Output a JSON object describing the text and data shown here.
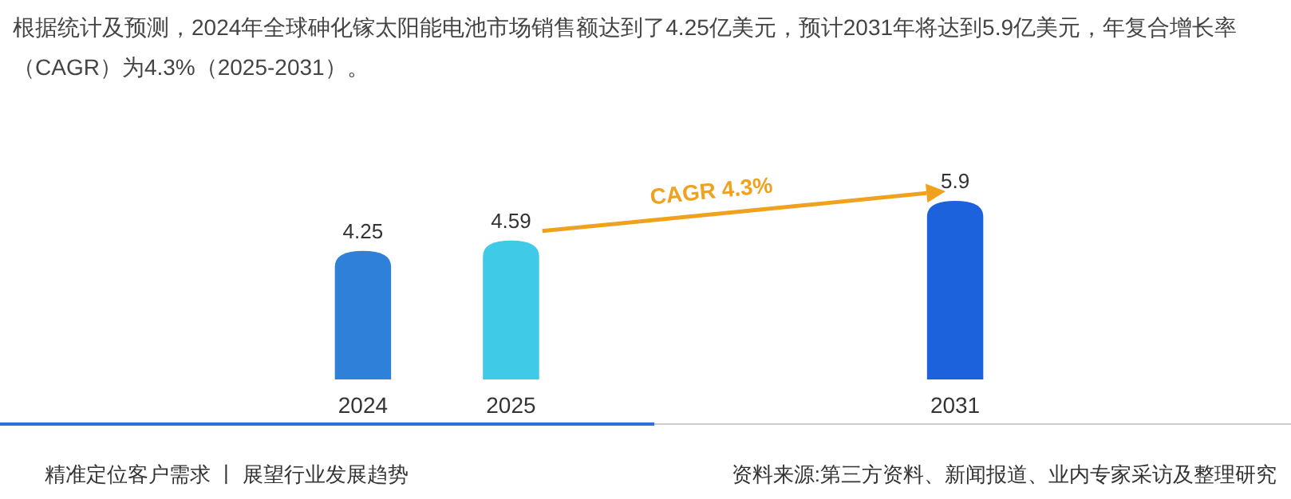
{
  "chart_data": {
    "type": "bar",
    "title": "根据统计及预测，2024年全球砷化镓太阳能电池市场销售额达到了4.25亿美元，预计2031年将达到5.9亿美元，年复合增长率（CAGR）为4.3%（2025-2031）。",
    "categories": [
      "2024",
      "2025",
      null,
      null,
      "2031"
    ],
    "values": [
      4.25,
      4.59,
      null,
      null,
      5.9
    ],
    "colors": [
      "#2f80d8",
      "#3fcbe8",
      null,
      null,
      "#1c62dc"
    ],
    "data_labels": true,
    "annotations": [
      "CAGR 4.3%",
      "精准定位客户需求 丨 展望行业发展趋势",
      "资料来源:第三方资料、新闻报道、业内专家采访及整理研究"
    ]
  }
}
